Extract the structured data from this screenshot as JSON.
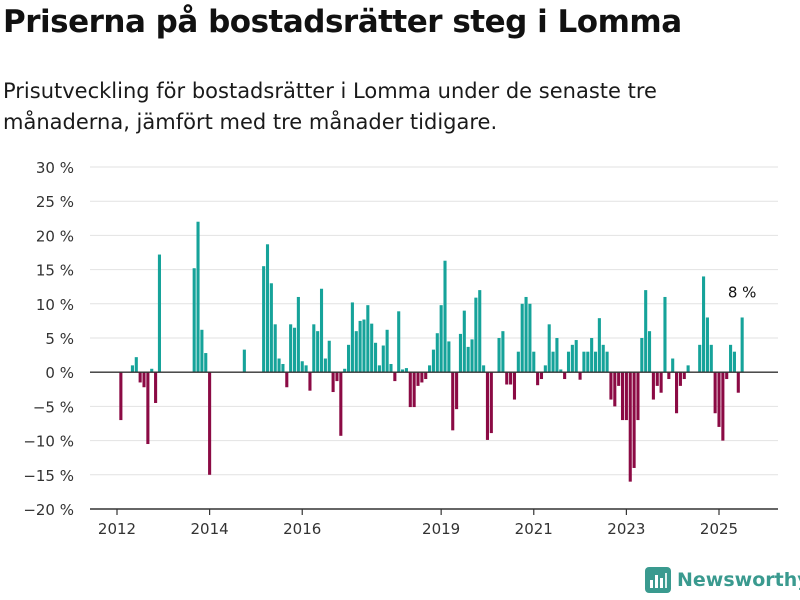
{
  "title": "Priserna på bostadsrätter steg i Lomma",
  "subtitle": "Prisutveckling för bostadsrätter i Lomma under de senaste tre månaderna, jämfört med tre månader tidigare.",
  "brand": {
    "name": "Newsworthy"
  },
  "colors": {
    "positive": "#16a39a",
    "negative": "#8b0a44",
    "grid": "#e2e2e2",
    "axis": "#333333",
    "brand": "#3a9a8f"
  },
  "chart_data": {
    "type": "bar",
    "x_unit": "month",
    "ylim": [
      -20,
      30
    ],
    "yticks": [
      -20,
      -15,
      -10,
      -5,
      0,
      5,
      10,
      15,
      20,
      25,
      30
    ],
    "ytick_labels": [
      "−20 %",
      "−15 %",
      "−10 %",
      "−5 %",
      "0 %",
      "5 %",
      "10 %",
      "15 %",
      "20 %",
      "25 %",
      "30 %"
    ],
    "xtick_labels": [
      "2012",
      "2014",
      "2016",
      "2019",
      "2021",
      "2023",
      "2025"
    ],
    "xticks": [
      "2012-01",
      "2014-01",
      "2016-01",
      "2019-01",
      "2021-01",
      "2023-01",
      "2025-01"
    ],
    "grid": true,
    "annotation": {
      "text": "8 %",
      "x": "2025-07"
    },
    "values": [
      [
        "2012-02",
        -7
      ],
      [
        "2012-05",
        1
      ],
      [
        "2012-06",
        2.2
      ],
      [
        "2012-07",
        -1.5
      ],
      [
        "2012-08",
        -2.2
      ],
      [
        "2012-09",
        -10.5
      ],
      [
        "2012-10",
        0.5
      ],
      [
        "2012-11",
        -4.5
      ],
      [
        "2012-12",
        17.2
      ],
      [
        "2013-09",
        15.2
      ],
      [
        "2013-10",
        22
      ],
      [
        "2013-11",
        6.2
      ],
      [
        "2013-12",
        2.8
      ],
      [
        "2014-01",
        -15
      ],
      [
        "2014-10",
        3.3
      ],
      [
        "2015-03",
        15.5
      ],
      [
        "2015-04",
        18.7
      ],
      [
        "2015-05",
        13
      ],
      [
        "2015-06",
        7
      ],
      [
        "2015-07",
        2
      ],
      [
        "2015-08",
        1.2
      ],
      [
        "2015-09",
        -2.2
      ],
      [
        "2015-10",
        7
      ],
      [
        "2015-11",
        6.5
      ],
      [
        "2015-12",
        11
      ],
      [
        "2016-01",
        1.6
      ],
      [
        "2016-02",
        1
      ],
      [
        "2016-03",
        -2.7
      ],
      [
        "2016-04",
        7
      ],
      [
        "2016-05",
        6
      ],
      [
        "2016-06",
        12.2
      ],
      [
        "2016-07",
        2
      ],
      [
        "2016-08",
        4.6
      ],
      [
        "2016-09",
        -2.9
      ],
      [
        "2016-10",
        -1.3
      ],
      [
        "2016-11",
        -9.3
      ],
      [
        "2016-12",
        0.5
      ],
      [
        "2017-01",
        4
      ],
      [
        "2017-02",
        10.2
      ],
      [
        "2017-03",
        6
      ],
      [
        "2017-04",
        7.5
      ],
      [
        "2017-05",
        7.7
      ],
      [
        "2017-06",
        9.8
      ],
      [
        "2017-07",
        7.1
      ],
      [
        "2017-08",
        4.3
      ],
      [
        "2017-09",
        1
      ],
      [
        "2017-10",
        3.9
      ],
      [
        "2017-11",
        6.2
      ],
      [
        "2017-12",
        1.2
      ],
      [
        "2018-01",
        -1.3
      ],
      [
        "2018-02",
        8.9
      ],
      [
        "2018-03",
        0.4
      ],
      [
        "2018-04",
        0.6
      ],
      [
        "2018-05",
        -5.1
      ],
      [
        "2018-06",
        -5.1
      ],
      [
        "2018-07",
        -2
      ],
      [
        "2018-08",
        -1.5
      ],
      [
        "2018-09",
        -1
      ],
      [
        "2018-10",
        1
      ],
      [
        "2018-11",
        3.3
      ],
      [
        "2018-12",
        5.7
      ],
      [
        "2019-01",
        9.8
      ],
      [
        "2019-02",
        16.3
      ],
      [
        "2019-03",
        4.5
      ],
      [
        "2019-04",
        -8.5
      ],
      [
        "2019-05",
        -5.4
      ],
      [
        "2019-06",
        5.6
      ],
      [
        "2019-07",
        9
      ],
      [
        "2019-08",
        3.7
      ],
      [
        "2019-09",
        4.8
      ],
      [
        "2019-10",
        10.9
      ],
      [
        "2019-11",
        12
      ],
      [
        "2019-12",
        1
      ],
      [
        "2020-01",
        -9.9
      ],
      [
        "2020-02",
        -8.9
      ],
      [
        "2020-04",
        5
      ],
      [
        "2020-05",
        6
      ],
      [
        "2020-06",
        -1.8
      ],
      [
        "2020-07",
        -1.8
      ],
      [
        "2020-08",
        -4
      ],
      [
        "2020-09",
        3
      ],
      [
        "2020-10",
        10
      ],
      [
        "2020-11",
        11
      ],
      [
        "2020-12",
        10
      ],
      [
        "2021-01",
        3
      ],
      [
        "2021-02",
        -1.9
      ],
      [
        "2021-03",
        -1
      ],
      [
        "2021-04",
        1
      ],
      [
        "2021-05",
        7
      ],
      [
        "2021-06",
        3
      ],
      [
        "2021-07",
        5
      ],
      [
        "2021-08",
        0.4
      ],
      [
        "2021-09",
        -1
      ],
      [
        "2021-10",
        3
      ],
      [
        "2021-11",
        4
      ],
      [
        "2021-12",
        4.7
      ],
      [
        "2022-01",
        -1.1
      ],
      [
        "2022-02",
        3
      ],
      [
        "2022-03",
        3
      ],
      [
        "2022-04",
        5
      ],
      [
        "2022-05",
        3
      ],
      [
        "2022-06",
        7.9
      ],
      [
        "2022-07",
        4
      ],
      [
        "2022-08",
        3
      ],
      [
        "2022-09",
        -4
      ],
      [
        "2022-10",
        -5
      ],
      [
        "2022-11",
        -2
      ],
      [
        "2022-12",
        -7
      ],
      [
        "2023-01",
        -7
      ],
      [
        "2023-02",
        -16
      ],
      [
        "2023-03",
        -14
      ],
      [
        "2023-04",
        -7
      ],
      [
        "2023-05",
        5
      ],
      [
        "2023-06",
        12
      ],
      [
        "2023-07",
        6
      ],
      [
        "2023-08",
        -4
      ],
      [
        "2023-09",
        -2
      ],
      [
        "2023-10",
        -3
      ],
      [
        "2023-11",
        11
      ],
      [
        "2023-12",
        -1
      ],
      [
        "2024-01",
        2
      ],
      [
        "2024-02",
        -6
      ],
      [
        "2024-03",
        -2
      ],
      [
        "2024-04",
        -1
      ],
      [
        "2024-05",
        1
      ],
      [
        "2024-08",
        4
      ],
      [
        "2024-09",
        14
      ],
      [
        "2024-10",
        8
      ],
      [
        "2024-11",
        4
      ],
      [
        "2024-12",
        -6
      ],
      [
        "2025-01",
        -8
      ],
      [
        "2025-02",
        -10
      ],
      [
        "2025-03",
        -1
      ],
      [
        "2025-04",
        4
      ],
      [
        "2025-05",
        3
      ],
      [
        "2025-06",
        -3
      ],
      [
        "2025-07",
        8
      ]
    ]
  }
}
